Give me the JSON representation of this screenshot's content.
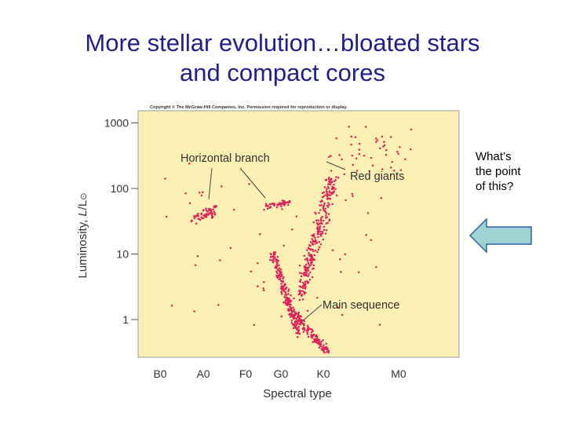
{
  "slide": {
    "title_line1": "More stellar evolution…bloated stars",
    "title_line2": "and compact cores",
    "side_note": [
      "What’s",
      "the point",
      "of this?"
    ]
  },
  "colors": {
    "background_panel": "#fbf0b4",
    "star_points": "#e0205a",
    "title": "#1f1f8f",
    "arrow_fill": "#9ed3d3"
  },
  "icons": {
    "arrow": "left-arrow-icon"
  },
  "chart_data": {
    "type": "scatter",
    "copyright": "Copyright © The McGraw-Hill Companies, Inc. Permission required for reproduction or display.",
    "xlabel": "Spectral type",
    "ylabel_parts": {
      "main": "Luminosity, ",
      "symbol": "L",
      "sub": "/L",
      "sun": "⊙"
    },
    "xticks": [
      "B0",
      "A0",
      "F0",
      "G0",
      "K0",
      "M0"
    ],
    "yticks": [
      {
        "label": "1000",
        "value": 1000
      },
      {
        "label": "100",
        "value": 100
      },
      {
        "label": "10",
        "value": 10
      },
      {
        "label": "1",
        "value": 1
      }
    ],
    "yscale": "log",
    "ylim": [
      0.4,
      1400
    ],
    "grid": false,
    "annotations": [
      {
        "text": "Horizontal branch"
      },
      {
        "text": "Red giants"
      },
      {
        "text": "Main sequence"
      }
    ],
    "clusters": [
      {
        "name": "main-sequence-upper",
        "x_range": [
          2.6,
          3.2
        ],
        "y_range": [
          0.6,
          10
        ],
        "n": 200
      },
      {
        "name": "main-sequence-lower",
        "x_range": [
          3.1,
          3.9
        ],
        "y_range": [
          0.3,
          1.2
        ],
        "n": 130
      },
      {
        "name": "giant-branch",
        "x_range": [
          3.2,
          4.0
        ],
        "y_range": [
          2,
          150
        ],
        "n": 270
      },
      {
        "name": "horizontal-branch-left",
        "x_range": [
          0.7,
          1.3
        ],
        "y_range": [
          20,
          60
        ],
        "n": 60
      },
      {
        "name": "horizontal-branch-right",
        "x_range": [
          2.4,
          3.0
        ],
        "y_range": [
          40,
          70
        ],
        "n": 50
      },
      {
        "name": "bright-red-giants",
        "x_range": [
          3.9,
          5.8
        ],
        "y_range": [
          150,
          900
        ],
        "n": 45
      },
      {
        "name": "scattered",
        "x_range": [
          0.0,
          5.5
        ],
        "y_range": [
          0.8,
          300
        ],
        "n": 50
      }
    ]
  }
}
